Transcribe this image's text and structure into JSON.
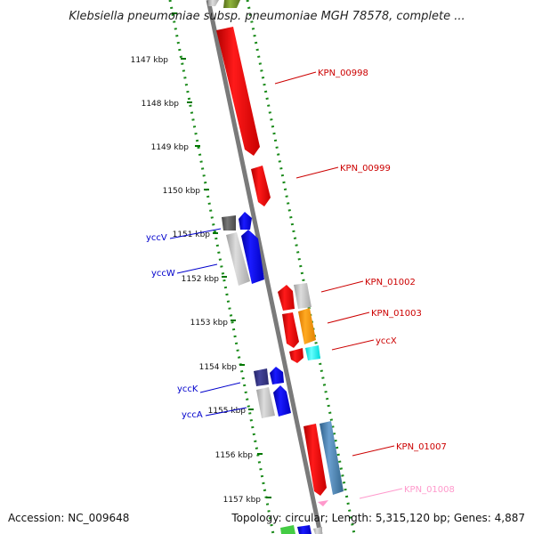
{
  "title": "Klebsiella pneumoniae subsp. pneumoniae MGH 78578, complete ...",
  "footer": {
    "accession": "Accession: NC_009648",
    "summary": "Topology: circular; Length: 5,315,120 bp; Genes: 4,887"
  },
  "scale": {
    "unit": "kbp",
    "ticks": [
      "1147 kbp",
      "1148 kbp",
      "1149 kbp",
      "1150 kbp",
      "1151 kbp",
      "1152 kbp",
      "1153 kbp",
      "1154 kbp",
      "1155 kbp",
      "1156 kbp",
      "1157 kbp"
    ]
  },
  "gene_labels": {
    "kpn_00998": "KPN_00998",
    "kpn_00999": "KPN_00999",
    "yccV": "yccV",
    "yccW": "yccW",
    "kpn_01002": "KPN_01002",
    "kpn_01003": "KPN_01003",
    "yccX": "yccX",
    "yccK": "yccK",
    "yccA": "yccA",
    "kpn_01007": "KPN_01007",
    "kpn_01008": "KPN_01008"
  },
  "colors": {
    "forward_cds": "#ff0000",
    "reverse_cds": "#0000ff",
    "grey_feature": "#bbbbbb",
    "dark_feature": "#555555",
    "navy_feature": "#333399",
    "orange_feature": "#ff9900",
    "cyan_feature": "#00ffff",
    "steelblue_feature": "#4682b4",
    "pink_feature": "#ff99cc",
    "olive_feature": "#6b8e23",
    "backbone": "#888888",
    "scale_dots": "#007700",
    "forward_label": "#cc0000",
    "reverse_label": "#0000cc",
    "pink_label": "#ff99cc"
  }
}
